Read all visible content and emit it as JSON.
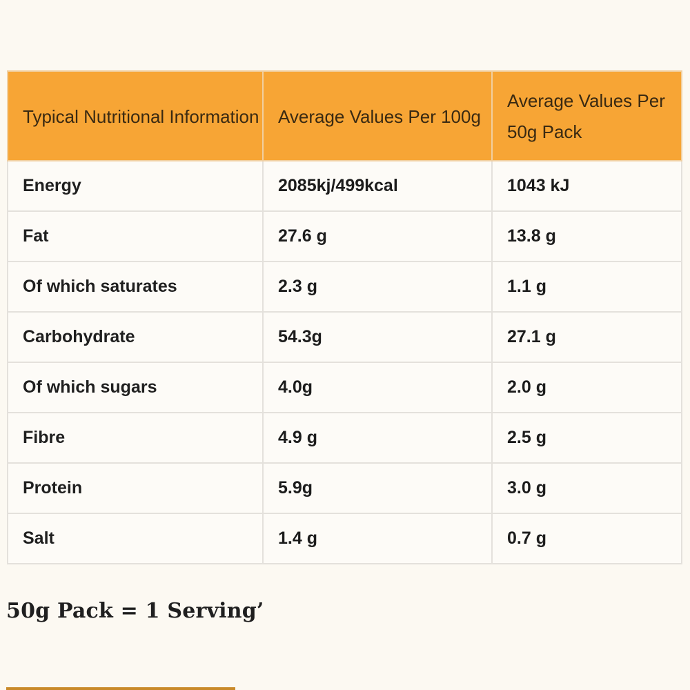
{
  "table": {
    "headers": [
      "Typical Nutritional Information",
      "Average Values Per 100g",
      "Average Values Per 50g Pack"
    ],
    "rows": [
      [
        "Energy",
        "2085kj/499kcal",
        "1043 kJ"
      ],
      [
        "Fat",
        "27.6 g",
        "13.8 g"
      ],
      [
        "Of which saturates",
        "2.3 g",
        "1.1 g"
      ],
      [
        "Carbohydrate",
        "54.3g",
        "27.1 g"
      ],
      [
        "Of which sugars",
        "4.0g",
        "2.0 g"
      ],
      [
        "Fibre",
        "4.9 g",
        "2.5 g"
      ],
      [
        "Protein",
        "5.9g",
        "3.0 g"
      ],
      [
        "Salt",
        "1.4 g",
        "0.7 g"
      ]
    ]
  },
  "serving_note": "50g Pack = 1 Serving’",
  "colors": {
    "header_background": "#f7a535",
    "page_background": "#fcf9f2",
    "bottom_bar": "#c98a2a"
  }
}
